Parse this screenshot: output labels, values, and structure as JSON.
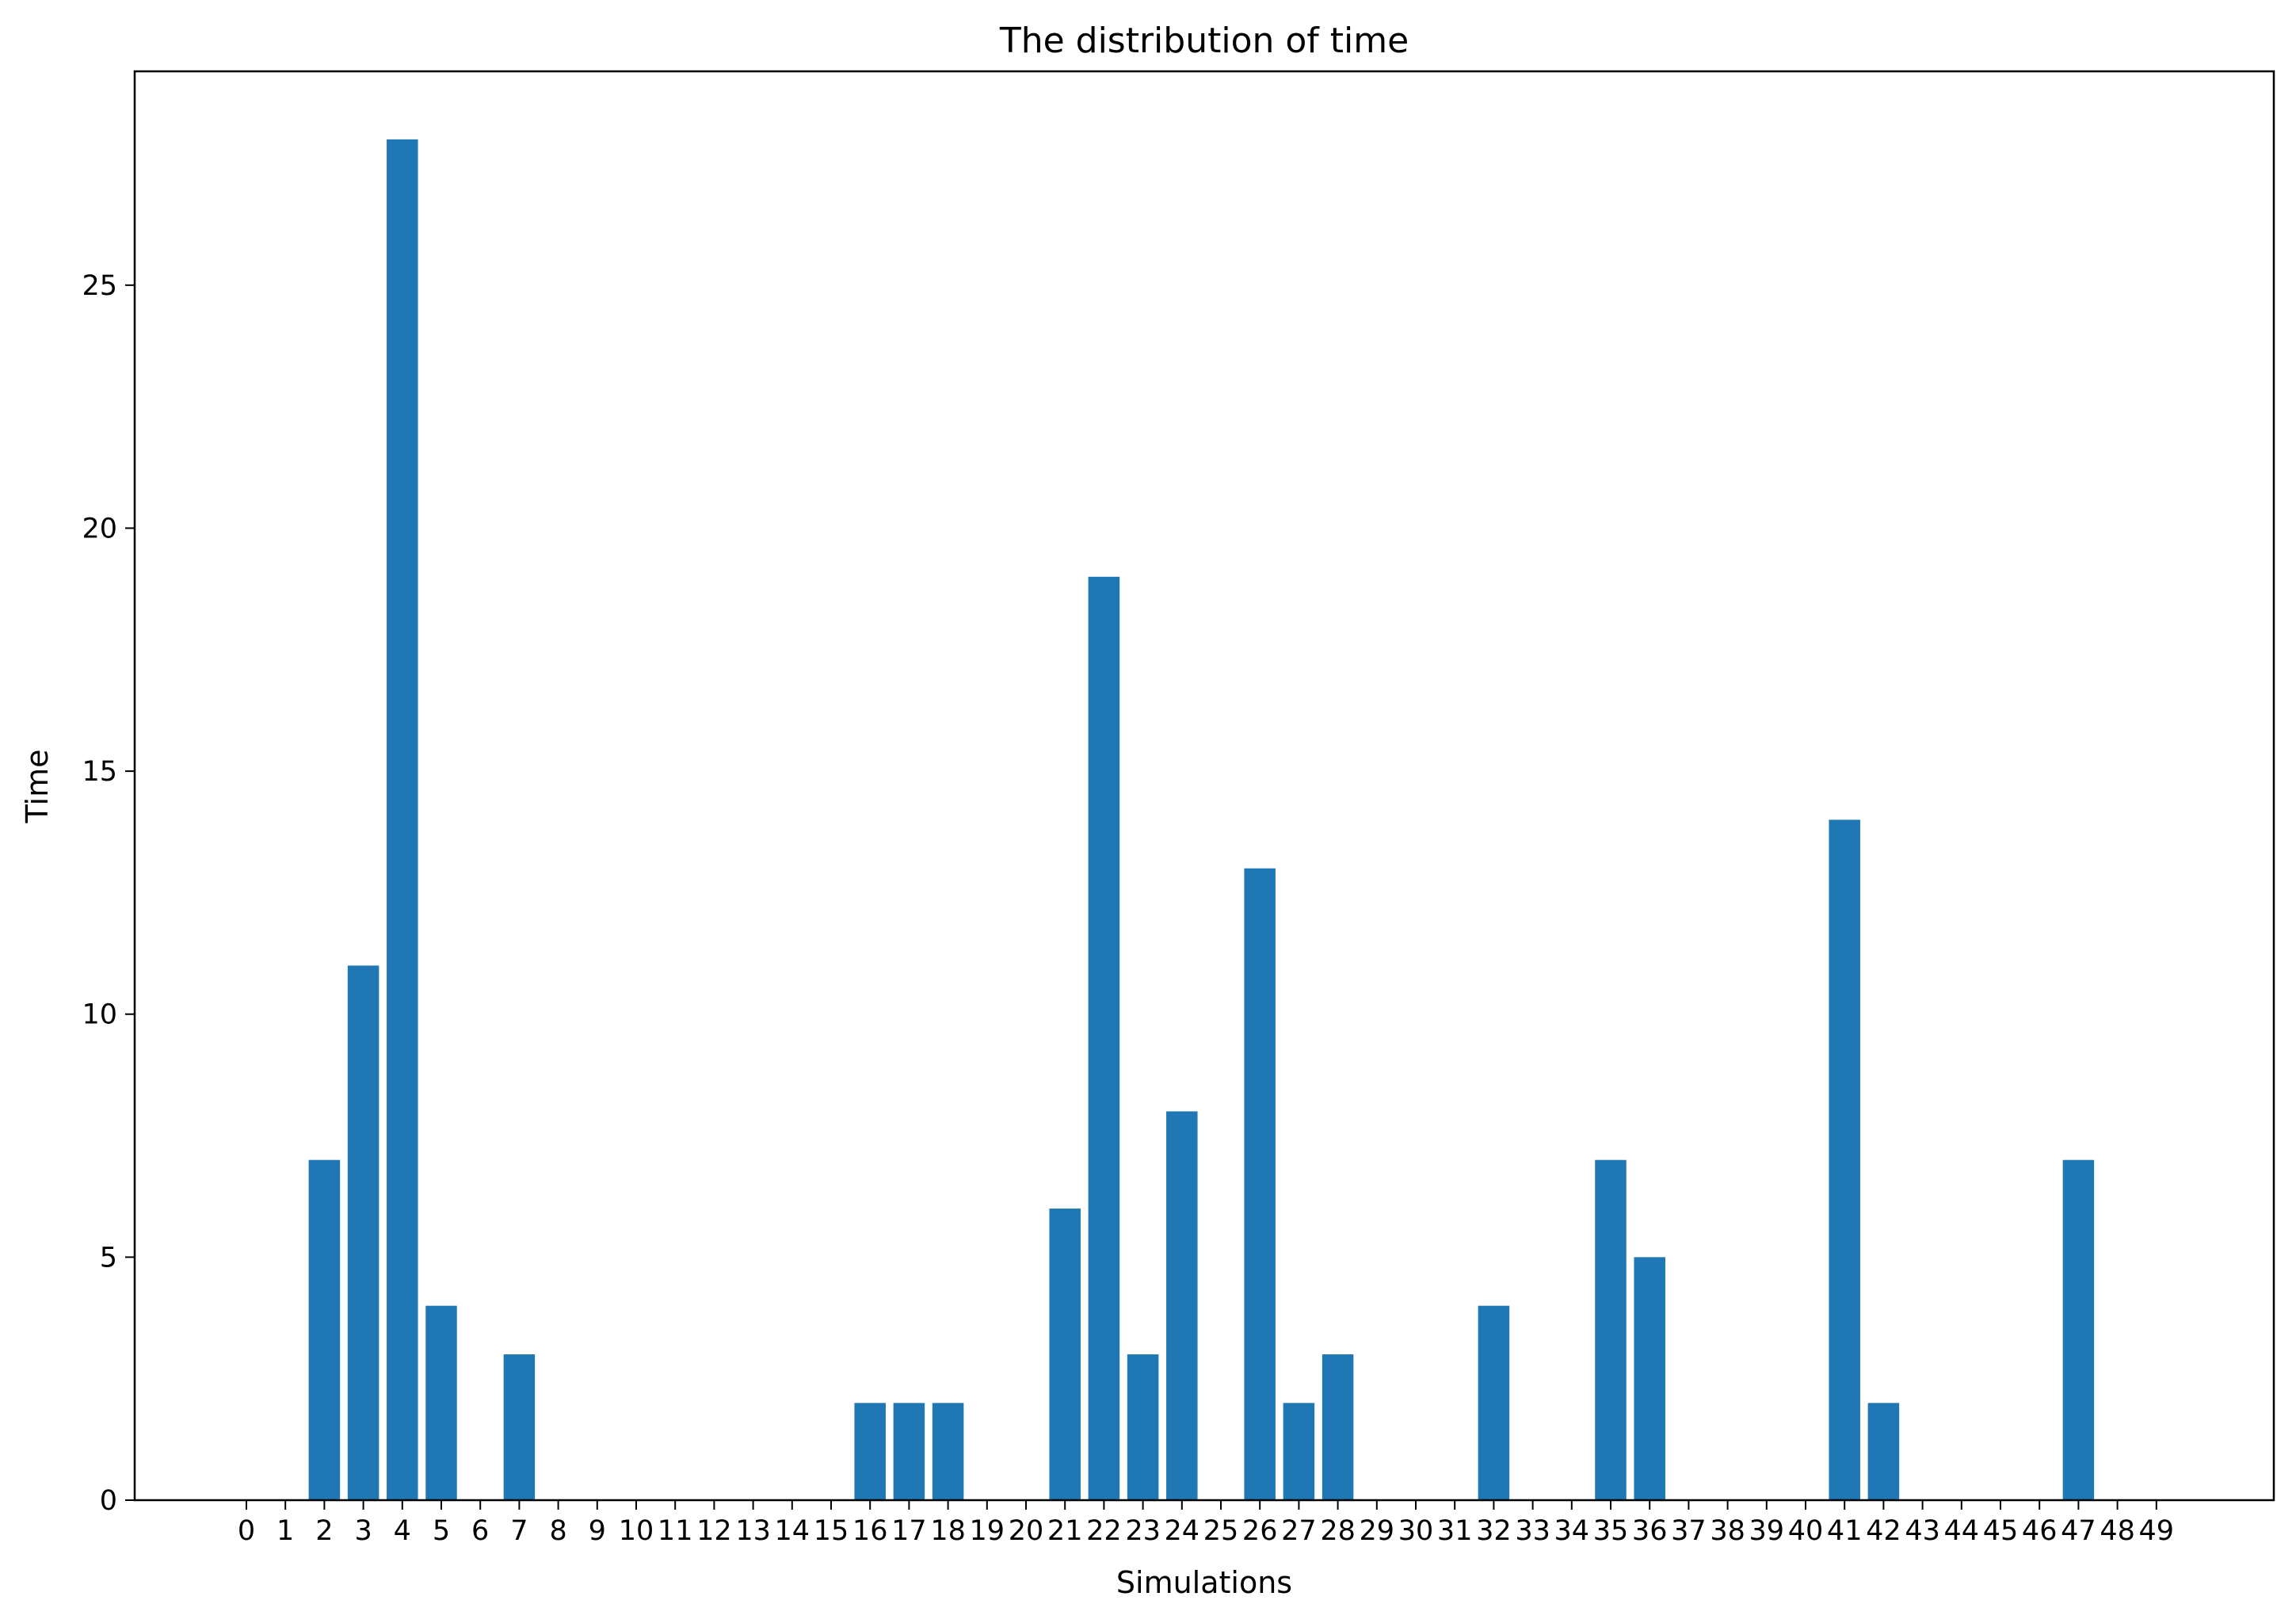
{
  "chart_data": {
    "type": "bar",
    "title": "The distribution of time",
    "xlabel": "Simulations",
    "ylabel": "Time",
    "categories": [
      "0",
      "1",
      "2",
      "3",
      "4",
      "5",
      "6",
      "7",
      "8",
      "9",
      "10",
      "11",
      "12",
      "13",
      "14",
      "15",
      "16",
      "17",
      "18",
      "19",
      "20",
      "21",
      "22",
      "23",
      "24",
      "25",
      "26",
      "27",
      "28",
      "29",
      "30",
      "31",
      "32",
      "33",
      "34",
      "35",
      "36",
      "37",
      "38",
      "39",
      "40",
      "41",
      "42",
      "43",
      "44",
      "45",
      "46",
      "47",
      "48",
      "49"
    ],
    "values": [
      0,
      0,
      7,
      11,
      28,
      4,
      0,
      3,
      0,
      0,
      0,
      0,
      0,
      0,
      0,
      0,
      2,
      2,
      2,
      0,
      0,
      6,
      19,
      3,
      8,
      0,
      13,
      2,
      3,
      0,
      0,
      0,
      4,
      0,
      0,
      7,
      5,
      0,
      0,
      0,
      0,
      14,
      2,
      0,
      0,
      0,
      0,
      7,
      0,
      0
    ],
    "yticks": [
      "0",
      "5",
      "10",
      "15",
      "20",
      "25"
    ],
    "ylim": [
      0,
      29.4
    ],
    "grid": false,
    "bar_color": "#1f77b4"
  }
}
